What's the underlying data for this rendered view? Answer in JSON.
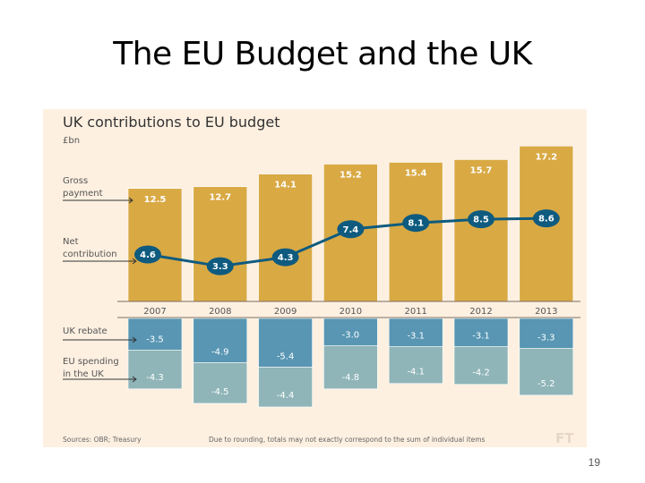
{
  "slide": {
    "title": "The EU Budget and the UK",
    "page_number": "19"
  },
  "chart_data": {
    "type": "bar",
    "title": "UK contributions to EU budget",
    "unit_label": "£bn",
    "categories": [
      "2007",
      "2008",
      "2009",
      "2010",
      "2011",
      "2012",
      "2013"
    ],
    "series": [
      {
        "name": "Gross payment",
        "kind": "bar",
        "values": [
          12.5,
          12.7,
          14.1,
          15.2,
          15.4,
          15.7,
          17.2
        ],
        "color": "#d9a944"
      },
      {
        "name": "Net contribution",
        "kind": "line",
        "values": [
          4.6,
          3.3,
          4.3,
          7.4,
          8.1,
          8.5,
          8.6
        ],
        "color": "#0e5b7f"
      },
      {
        "name": "UK rebate",
        "kind": "bar-negative",
        "values": [
          -3.5,
          -4.9,
          -5.4,
          -3.0,
          -3.1,
          -3.1,
          -3.3
        ],
        "color": "#5896b3"
      },
      {
        "name": "EU spending in the UK",
        "kind": "bar-negative-stacked",
        "values": [
          -4.3,
          -4.5,
          -4.4,
          -4.8,
          -4.1,
          -4.2,
          -5.2
        ],
        "color": "#8fb5b8"
      }
    ],
    "legend_labels": {
      "gross": [
        "Gross",
        "payment"
      ],
      "net": [
        "Net",
        "contribution"
      ],
      "rebate": [
        "UK rebate"
      ],
      "spending": [
        "EU spending",
        "in the UK"
      ]
    },
    "footer": {
      "sources": "Sources: OBR; Treasury",
      "note": "Due to rounding, totals may not exactly correspond to the sum of individual items",
      "logo": "FT"
    },
    "ylim": [
      -10,
      18
    ],
    "grid": false,
    "background": "#fdf0e1"
  }
}
